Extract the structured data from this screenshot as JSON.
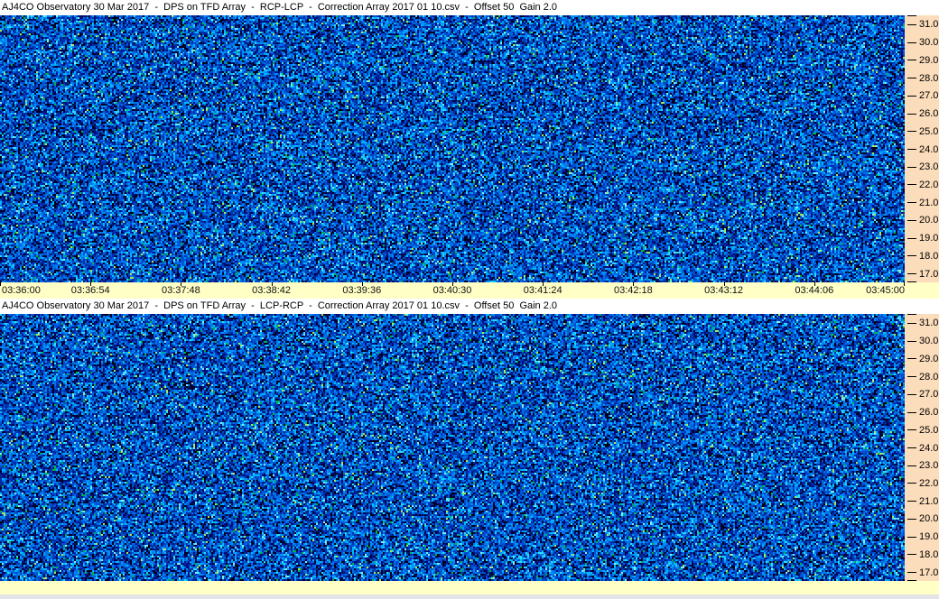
{
  "colors": {
    "title_bg": "#FFFFFF",
    "title_text": "#000000",
    "freq_axis_bg": "#FBDCBB",
    "time_axis_bg": "#FFFFC6",
    "tick_color": "#000000",
    "window_edge_bg": "#E4E4E8",
    "noise_palette": [
      {
        "color": "#000020",
        "w": 13
      },
      {
        "color": "#001078",
        "w": 14
      },
      {
        "color": "#0030A8",
        "w": 16
      },
      {
        "color": "#0050D0",
        "w": 17
      },
      {
        "color": "#0070E8",
        "w": 14
      },
      {
        "color": "#0090F8",
        "w": 11
      },
      {
        "color": "#00B8FF",
        "w": 7
      },
      {
        "color": "#30D8FF",
        "w": 4
      },
      {
        "color": "#80ECFF",
        "w": 1.5
      },
      {
        "color": "#00B048",
        "w": 1.5
      },
      {
        "color": "#A8E858",
        "w": 1
      }
    ]
  },
  "panels": [
    {
      "title": "AJ4CO Observatory 30 Mar 2017  -  DPS on TFD Array  -  RCP-LCP  -  Correction Array 2017 01 10.csv  -  Offset 50  Gain 2.0",
      "freq_tick_labels": [
        "31.0",
        "30.0",
        "29.0",
        "28.0",
        "27.0",
        "26.0",
        "25.0",
        "24.0",
        "23.0",
        "22.0",
        "21.0",
        "20.0",
        "19.0",
        "18.0",
        "17.0"
      ],
      "time_tick_labels": [
        "03:36:00",
        "03:36:54",
        "03:37:48",
        "03:38:42",
        "03:39:36",
        "03:40:30",
        "03:41:24",
        "03:42:18",
        "03:43:12",
        "03:44:06",
        "03:45:00"
      ]
    },
    {
      "title": "AJ4CO Observatory 30 Mar 2017  -  DPS on TFD Array  -  LCP-RCP  -  Correction Array 2017 01 10.csv  -  Offset 50  Gain 2.0",
      "freq_tick_labels": [
        "31.0",
        "30.0",
        "29.0",
        "28.0",
        "27.0",
        "26.0",
        "25.0",
        "24.0",
        "23.0",
        "22.0",
        "21.0",
        "20.0",
        "19.0",
        "18.0",
        "17.0"
      ],
      "time_tick_labels": []
    }
  ]
}
